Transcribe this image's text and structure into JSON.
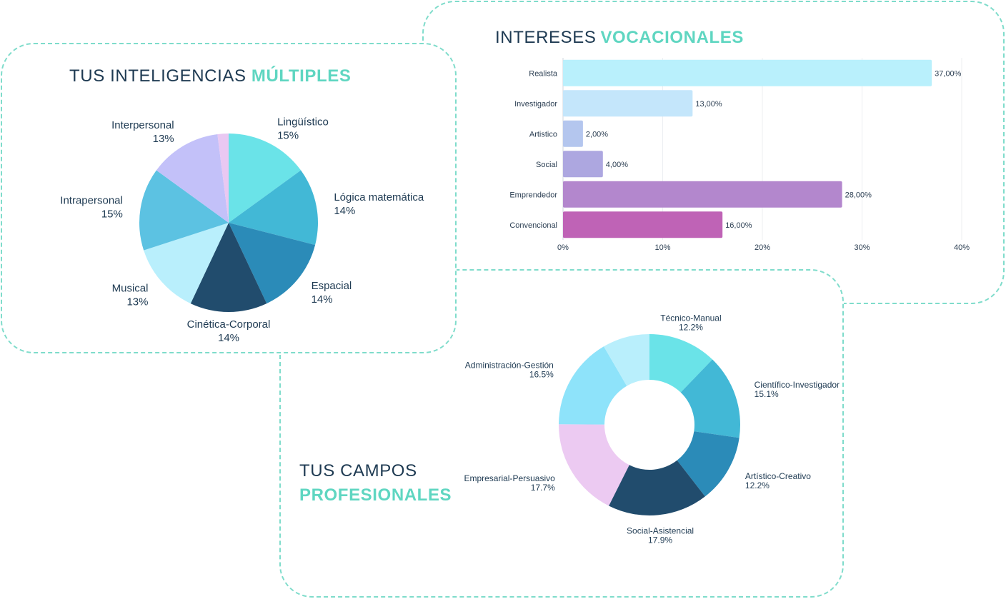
{
  "vocational": {
    "title_main": "INTERESES",
    "title_accent": "VOCACIONALES"
  },
  "intelligences": {
    "title_main": "TUS INTELIGENCIAS",
    "title_accent": "MÚLTIPLES"
  },
  "fields": {
    "title_main": "TUS CAMPOS",
    "title_accent": "PROFESIONALES"
  },
  "chart_data": [
    {
      "id": "intereses-vocacionales",
      "type": "bar",
      "orientation": "horizontal",
      "title": "INTERESES VOCACIONALES",
      "categories": [
        "Realista",
        "Investigador",
        "Artistico",
        "Social",
        "Emprendedor",
        "Convencional"
      ],
      "values": [
        37,
        13,
        2,
        4,
        28,
        16
      ],
      "value_labels": [
        "37,00%",
        "13,00%",
        "2,00%",
        "4,00%",
        "28,00%",
        "16,00%"
      ],
      "colors": [
        "#b9f0fc",
        "#c4e6fb",
        "#b4c6ee",
        "#ada7e0",
        "#b387cd",
        "#bf63b6"
      ],
      "xlim": [
        0,
        40
      ],
      "xticks": [
        0,
        10,
        20,
        30,
        40
      ],
      "xtick_labels": [
        "0%",
        "10%",
        "20%",
        "30%",
        "40%"
      ],
      "grid": true
    },
    {
      "id": "inteligencias-multiples",
      "type": "pie",
      "title": "TUS INTELIGENCIAS MÚLTIPLES",
      "slices": [
        {
          "label": "Lingüístico",
          "value": 15,
          "value_label": "15%",
          "color": "#6ae3e8"
        },
        {
          "label": "Lógica matemática",
          "value": 14,
          "value_label": "14%",
          "color": "#42b8d6"
        },
        {
          "label": "Espacial",
          "value": 14,
          "value_label": "14%",
          "color": "#2b8bb8"
        },
        {
          "label": "Cinética-Corporal",
          "value": 14,
          "value_label": "14%",
          "color": "#214c6d"
        },
        {
          "label": "Musical",
          "value": 13,
          "value_label": "13%",
          "color": "#b9effc"
        },
        {
          "label": "Intrapersonal",
          "value": 15,
          "value_label": "15%",
          "color": "#5cc2e2"
        },
        {
          "label": "Interpersonal",
          "value": 13,
          "value_label": "13%",
          "color": "#c3c1f9"
        },
        {
          "label": "",
          "value": 2,
          "value_label": "",
          "color": "#e9c8f2"
        }
      ]
    },
    {
      "id": "campos-profesionales",
      "type": "pie",
      "variant": "donut",
      "title": "TUS CAMPOS PROFESIONALES",
      "slices": [
        {
          "label": "Técnico-Manual",
          "value": 12.2,
          "value_label": "12.2%",
          "color": "#6ae3e8"
        },
        {
          "label": "Científico-Investigador",
          "value": 15.1,
          "value_label": "15.1%",
          "color": "#42b8d6"
        },
        {
          "label": "Artístico-Creativo",
          "value": 12.2,
          "value_label": "12.2%",
          "color": "#2b8bb8"
        },
        {
          "label": "Social-Asistencial",
          "value": 17.9,
          "value_label": "17.9%",
          "color": "#214c6d"
        },
        {
          "label": "Empresarial-Persuasivo",
          "value": 17.7,
          "value_label": "17.7%",
          "color": "#eccaf2"
        },
        {
          "label": "Administración-Gestión",
          "value": 16.5,
          "value_label": "16.5%",
          "color": "#8ee3fa"
        },
        {
          "label": "",
          "value": 8.4,
          "value_label": "",
          "color": "#b9effc"
        }
      ]
    }
  ]
}
